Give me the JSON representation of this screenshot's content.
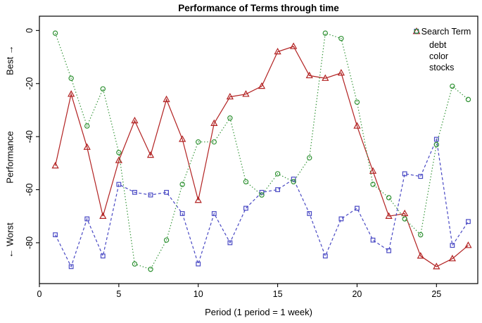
{
  "title": "Performance of Terms through time",
  "axes": {
    "x": {
      "label": "Period (1 period = 1 week)",
      "tick_labels": [
        "0",
        "5",
        "10",
        "15",
        "20",
        "25"
      ],
      "tick_values": [
        0,
        5,
        10,
        15,
        20,
        25
      ]
    },
    "y": {
      "label_top": "Best →",
      "label_mid": "Performance",
      "label_bottom": "← Worst",
      "tick_labels": [
        "0",
        "-20",
        "-40",
        "-60",
        "-80"
      ],
      "tick_values": [
        0,
        -20,
        -40,
        -60,
        -80
      ]
    }
  },
  "legend": {
    "title": "Search Term",
    "position": "top-right"
  },
  "chart_data": {
    "type": "line",
    "title": "Performance of Terms through time",
    "xlabel": "Period (1 period = 1 week)",
    "ylabel": "Performance (Best at top, Worst at bottom)",
    "xlim": [
      0,
      27.6
    ],
    "ylim": [
      -95.4,
      5.4
    ],
    "grid": false,
    "legend_position": "top-right",
    "x": [
      1,
      2,
      3,
      4,
      5,
      6,
      7,
      8,
      9,
      10,
      11,
      12,
      13,
      14,
      15,
      16,
      17,
      18,
      19,
      20,
      21,
      22,
      23,
      24,
      25,
      26,
      27
    ],
    "series": [
      {
        "name": "debt",
        "color": "#B22222",
        "marker": "triangle",
        "linestyle": "solid",
        "values": [
          -51,
          -24,
          -44,
          -70,
          -49,
          -34,
          -47,
          -26,
          -41,
          -64,
          -35,
          -25,
          -24,
          -21,
          -8,
          -6,
          -17,
          -18,
          -16,
          -36,
          -53,
          -70,
          -69,
          -85,
          -89,
          -86,
          -81
        ]
      },
      {
        "name": "color",
        "color": "#4949C4",
        "marker": "square",
        "linestyle": "dashed",
        "values": [
          -77,
          -89,
          -71,
          -85,
          -58,
          -61,
          -62,
          -61,
          -69,
          -88,
          -69,
          -80,
          -67,
          -61,
          -60,
          -56,
          -69,
          -85,
          -71,
          -67,
          -79,
          -83,
          -54,
          -55,
          -41,
          -81,
          -72
        ]
      },
      {
        "name": "stocks",
        "color": "#2E9132",
        "marker": "circle",
        "linestyle": "dotted",
        "values": [
          -1,
          -18,
          -36,
          -22,
          -46,
          -88,
          -90,
          -79,
          -58,
          -42,
          -42,
          -33,
          -57,
          -62,
          -54,
          -57,
          -48,
          -1,
          -3,
          -27,
          -58,
          -63,
          -71,
          -77,
          -43,
          -21,
          -26
        ]
      }
    ]
  }
}
